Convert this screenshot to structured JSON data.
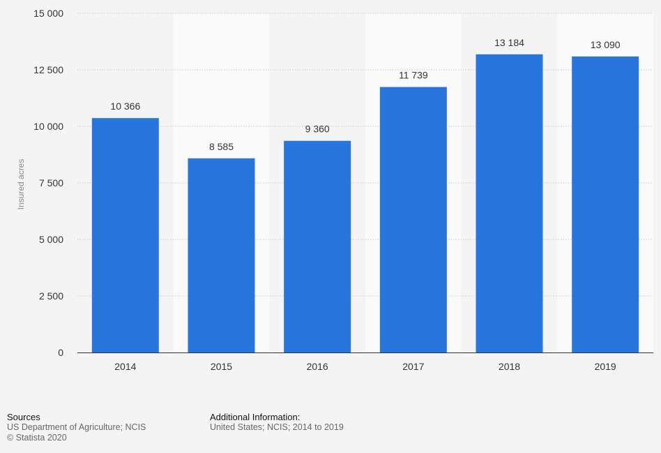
{
  "chart_data": {
    "type": "bar",
    "title": "",
    "xlabel": "",
    "ylabel": "Insured acres",
    "categories": [
      "2014",
      "2015",
      "2016",
      "2017",
      "2018",
      "2019"
    ],
    "values": [
      10366,
      8585,
      9360,
      11739,
      13184,
      13090
    ],
    "value_labels": [
      "10 366",
      "8 585",
      "9 360",
      "11 739",
      "13 184",
      "13 090"
    ],
    "ylim": [
      0,
      15000
    ],
    "yticks": [
      0,
      2500,
      5000,
      7500,
      10000,
      12500,
      15000
    ],
    "ytick_labels": [
      "0",
      "2 500",
      "5 000",
      "7 500",
      "10 000",
      "12 500",
      "15 000"
    ],
    "grid": true,
    "bar_color": "#2876dd"
  },
  "footer": {
    "sources_heading": "Sources",
    "sources_line1": "US Department of Agriculture; NCIS",
    "sources_line2": "© Statista 2020",
    "additional_heading": "Additional Information:",
    "additional_line1": "United States; NCIS; 2014 to 2019"
  }
}
